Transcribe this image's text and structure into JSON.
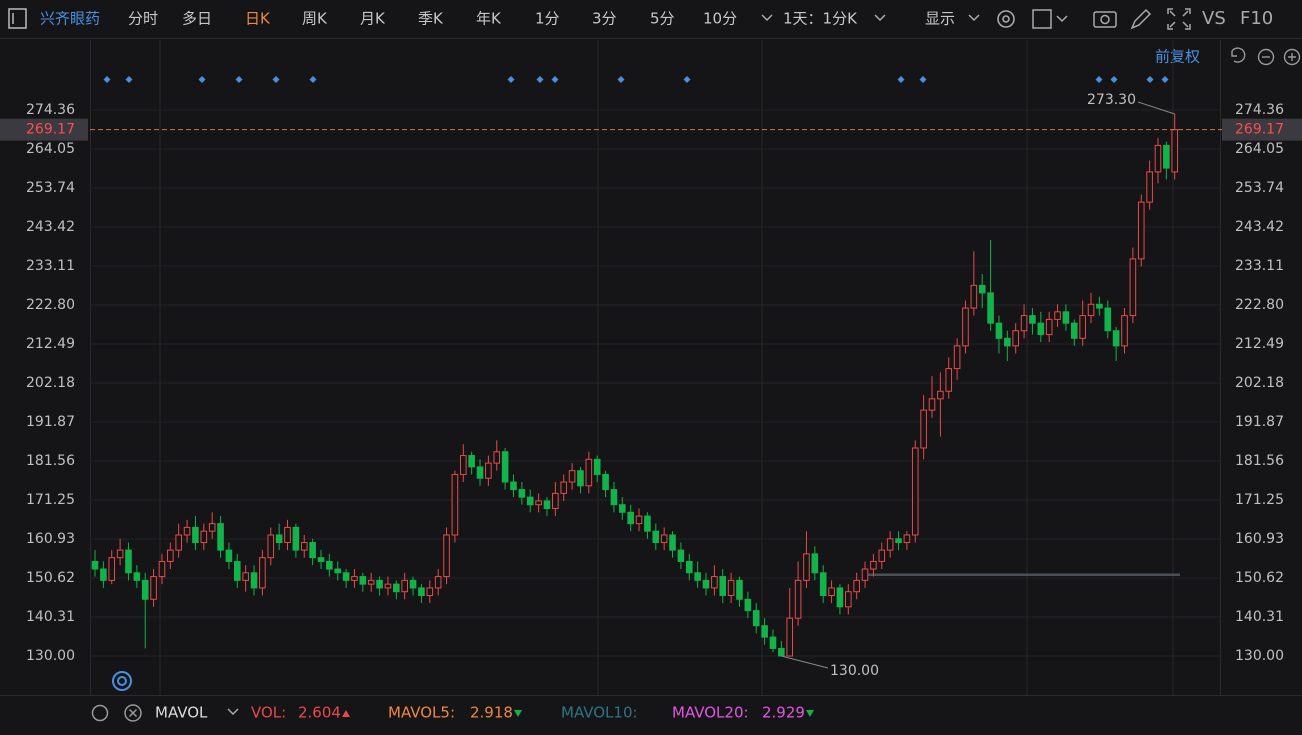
{
  "toolbar": {
    "stock": "兴齐眼药",
    "tabs": [
      "分时",
      "多日",
      "日K",
      "周K",
      "月K",
      "季K",
      "年K",
      "1分",
      "3分",
      "5分",
      "10分"
    ],
    "active_tab": "日K",
    "period": "1天：1分K",
    "display": "显示",
    "vs": "VS",
    "f10": "F10"
  },
  "chart_data": {
    "type": "candlestick",
    "adjust": "前复权",
    "up_color": "#e84a4a",
    "down_color": "#12b34a",
    "ylim": [
      119.69,
      284.94
    ],
    "yticks": [
      {
        "value": 130,
        "label": "130.00"
      },
      140.31,
      150.62,
      160.93,
      171.25,
      181.56,
      191.87,
      202.18,
      212.49,
      {
        "value": 222.8,
        "label": "222.80"
      },
      233.11,
      243.42,
      253.74,
      264.05,
      274.36
    ],
    "grid": true,
    "last_price": 269.17,
    "max_label": {
      "value": 273.3,
      "label": "273.30"
    },
    "min_label": {
      "value": 130,
      "label": "130.00"
    },
    "reference_line": 151.5,
    "open": [
      155,
      153,
      150,
      156,
      158,
      152,
      150,
      145,
      151,
      155,
      158,
      162,
      164,
      160,
      163,
      165,
      158,
      155,
      150,
      152,
      148,
      156,
      162,
      160,
      164,
      158,
      160,
      156,
      155,
      153,
      152,
      150,
      151,
      149,
      150,
      148,
      149,
      147,
      150,
      148,
      146,
      148,
      151,
      162,
      178,
      183,
      180,
      177,
      181,
      184,
      176,
      174,
      172,
      170,
      171,
      169,
      173,
      176,
      179,
      175,
      182,
      178,
      174,
      170,
      168,
      165,
      167,
      163,
      160,
      162,
      158,
      155,
      152,
      150,
      148,
      151,
      146,
      150,
      145,
      142,
      138,
      135,
      132,
      130,
      140,
      150,
      157,
      152,
      146,
      148,
      143,
      147,
      150,
      153,
      155,
      158,
      161,
      160,
      162,
      185,
      195,
      198,
      200,
      206,
      212,
      222,
      228,
      226,
      218,
      214,
      212,
      216,
      220,
      218,
      215,
      219,
      221,
      218,
      214,
      220,
      223,
      222,
      216,
      212,
      220,
      235,
      250,
      258,
      265,
      258
    ],
    "high": [
      158,
      155,
      158,
      161,
      160,
      154,
      152,
      153,
      157,
      160,
      165,
      166,
      167,
      165,
      168,
      167,
      160,
      157,
      154,
      154,
      158,
      164,
      165,
      166,
      165,
      162,
      161,
      158,
      157,
      155,
      153,
      153,
      152,
      152,
      151,
      151,
      150,
      152,
      151,
      149,
      150,
      153,
      164,
      179,
      186,
      184,
      182,
      183,
      187,
      185,
      178,
      176,
      174,
      173,
      172,
      176,
      178,
      181,
      180,
      184,
      183,
      179,
      176,
      172,
      170,
      169,
      168,
      165,
      164,
      163,
      160,
      157,
      155,
      152,
      154,
      153,
      152,
      151,
      147,
      144,
      140,
      137,
      134,
      148,
      155,
      163,
      159,
      154,
      150,
      149,
      149,
      152,
      155,
      157,
      160,
      163,
      163,
      163,
      187,
      199,
      204,
      205,
      209,
      214,
      224,
      237,
      231,
      240,
      220,
      216,
      218,
      223,
      222,
      221,
      221,
      223,
      223,
      219,
      224,
      226,
      225,
      224,
      217,
      222,
      238,
      252,
      261,
      267,
      266,
      273.3
    ],
    "low": [
      151,
      148,
      149,
      154,
      150,
      148,
      132,
      143,
      149,
      153,
      156,
      160,
      158,
      158,
      161,
      156,
      153,
      148,
      147,
      146,
      146,
      154,
      158,
      158,
      156,
      156,
      154,
      153,
      151,
      150,
      148,
      148,
      147,
      147,
      146,
      146,
      145,
      145,
      146,
      144,
      144,
      146,
      149,
      160,
      176,
      178,
      175,
      175,
      179,
      174,
      172,
      170,
      168,
      168,
      167,
      167,
      171,
      174,
      173,
      173,
      176,
      172,
      168,
      166,
      163,
      163,
      161,
      158,
      158,
      156,
      153,
      150,
      148,
      146,
      146,
      144,
      144,
      143,
      140,
      136,
      133,
      131,
      130,
      131,
      138,
      148,
      150,
      144,
      144,
      141,
      141,
      145,
      148,
      151,
      153,
      156,
      158,
      158,
      160,
      182,
      193,
      188,
      198,
      203,
      210,
      220,
      222,
      216,
      210,
      208,
      210,
      214,
      215,
      213,
      213,
      217,
      216,
      212,
      212,
      218,
      220,
      214,
      208,
      210,
      218,
      233,
      248,
      255,
      256,
      256
    ],
    "close": [
      153,
      150,
      156,
      158,
      152,
      150,
      145,
      151,
      155,
      158,
      162,
      164,
      160,
      163,
      165,
      158,
      155,
      150,
      152,
      148,
      156,
      162,
      160,
      164,
      158,
      160,
      156,
      155,
      153,
      152,
      150,
      151,
      149,
      150,
      148,
      149,
      147,
      150,
      148,
      146,
      148,
      151,
      162,
      178,
      183,
      180,
      177,
      181,
      184,
      176,
      174,
      172,
      170,
      171,
      169,
      173,
      176,
      179,
      175,
      182,
      178,
      174,
      170,
      168,
      165,
      167,
      163,
      160,
      162,
      158,
      155,
      152,
      150,
      148,
      151,
      146,
      150,
      145,
      142,
      138,
      135,
      132,
      130,
      140,
      150,
      157,
      152,
      146,
      148,
      143,
      147,
      150,
      153,
      155,
      158,
      161,
      160,
      162,
      185,
      195,
      198,
      200,
      206,
      212,
      222,
      228,
      226,
      218,
      214,
      212,
      216,
      220,
      218,
      215,
      219,
      221,
      218,
      214,
      220,
      223,
      222,
      216,
      212,
      220,
      235,
      250,
      258,
      265,
      259,
      269.17
    ]
  },
  "indicator": {
    "name": "MAVOL",
    "vol_label": "VOL:",
    "vol": 2.604,
    "mavol5_label": "MAVOL5:",
    "mavol5": 2.918,
    "mavol10_label": "MAVOL10:",
    "mavol20_label": "MAVOL20:",
    "mavol20": 2.929
  }
}
